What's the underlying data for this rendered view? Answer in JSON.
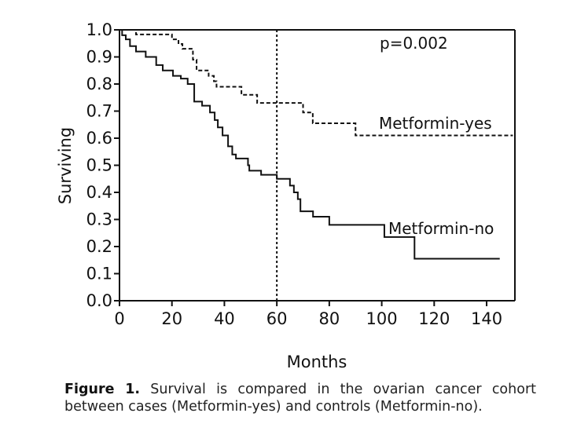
{
  "chart_data": {
    "type": "line",
    "subtype": "kaplan-meier step",
    "xlabel": "Months",
    "ylabel": "Surviving",
    "xlim": [
      0,
      150
    ],
    "ylim": [
      0,
      1
    ],
    "xticks": [
      "0",
      "20",
      "40",
      "60",
      "80",
      "100",
      "120",
      "140"
    ],
    "yticks": [
      "0.0",
      "0.1",
      "0.2",
      "0.3",
      "0.4",
      "0.5",
      "0.6",
      "0.7",
      "0.8",
      "0.9",
      "1.0"
    ],
    "grid": false,
    "reference_line": {
      "x": 60,
      "style": "dotted"
    },
    "annotation": "p=0.002",
    "series": [
      {
        "name": "Metformin-yes",
        "style": "dashed",
        "steps": [
          [
            0,
            1.0
          ],
          [
            6.3,
            0.983
          ],
          [
            20,
            0.965
          ],
          [
            22.5,
            0.948
          ],
          [
            24,
            0.93
          ],
          [
            28,
            0.89
          ],
          [
            29.4,
            0.85
          ],
          [
            34,
            0.83
          ],
          [
            36,
            0.81
          ],
          [
            37,
            0.79
          ],
          [
            46.5,
            0.76
          ],
          [
            52.5,
            0.73
          ],
          [
            70,
            0.695
          ],
          [
            73.7,
            0.655
          ],
          [
            90,
            0.61
          ]
        ],
        "end": 150
      },
      {
        "name": "Metformin-no",
        "style": "solid",
        "steps": [
          [
            0,
            1.0
          ],
          [
            1,
            0.98
          ],
          [
            2.4,
            0.965
          ],
          [
            4,
            0.94
          ],
          [
            6.3,
            0.92
          ],
          [
            10,
            0.9
          ],
          [
            14,
            0.87
          ],
          [
            16.5,
            0.85
          ],
          [
            20.4,
            0.83
          ],
          [
            23.4,
            0.82
          ],
          [
            26,
            0.8
          ],
          [
            28.5,
            0.735
          ],
          [
            31.5,
            0.72
          ],
          [
            34.5,
            0.695
          ],
          [
            36.3,
            0.667
          ],
          [
            37.5,
            0.64
          ],
          [
            39.3,
            0.61
          ],
          [
            41.4,
            0.57
          ],
          [
            43,
            0.54
          ],
          [
            44.4,
            0.525
          ],
          [
            49,
            0.5
          ],
          [
            49.5,
            0.48
          ],
          [
            54,
            0.465
          ],
          [
            60,
            0.45
          ],
          [
            65,
            0.425
          ],
          [
            66.5,
            0.4
          ],
          [
            68,
            0.375
          ],
          [
            69,
            0.33
          ],
          [
            73.8,
            0.31
          ],
          [
            80,
            0.28
          ],
          [
            101,
            0.235
          ],
          [
            112.5,
            0.155
          ]
        ],
        "end": 145
      }
    ]
  },
  "caption": {
    "label": "Figure 1.",
    "text": " Survival is compared in the ovarian cancer cohort between cases (Metformin-yes) and controls (Metformin-no)."
  }
}
